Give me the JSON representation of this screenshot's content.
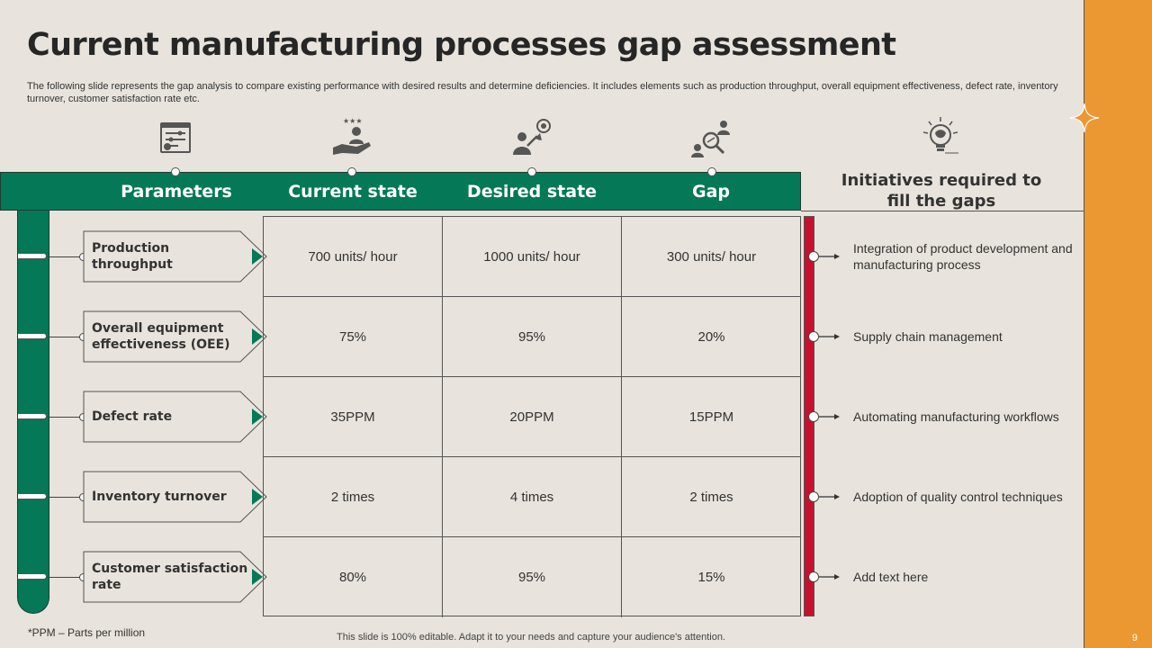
{
  "title": "Current manufacturing processes gap assessment",
  "subtitle": "The following slide represents the gap analysis to compare existing performance with desired results and determine deficiencies. It includes elements such as production throughput, overall equipment effectiveness, defect rate, inventory turnover, customer satisfaction rate etc.",
  "icons": [
    "dashboard-settings-icon",
    "rating-hand-icon",
    "growth-target-icon",
    "search-people-icon",
    "brain-bulb-icon"
  ],
  "headers": {
    "parameters": "Parameters",
    "current": "Current state",
    "desired": "Desired state",
    "gap": "Gap",
    "initiatives": "Initiatives required to fill the gaps"
  },
  "rows": [
    {
      "parameter": "Production throughput",
      "current": "700 units/ hour",
      "desired": "1000 units/ hour",
      "gap": "300 units/ hour",
      "initiative": "Integration of product development and manufacturing process"
    },
    {
      "parameter": "Overall equipment effectiveness (OEE)",
      "current": "75%",
      "desired": "95%",
      "gap": "20%",
      "initiative": "Supply chain management"
    },
    {
      "parameter": "Defect rate",
      "current": "35PPM",
      "desired": "20PPM",
      "gap": "15PPM",
      "initiative": "Automating manufacturing workflows"
    },
    {
      "parameter": "Inventory turnover",
      "current": "2 times",
      "desired": "4 times",
      "gap": "2 times",
      "initiative": "Adoption of quality control techniques"
    },
    {
      "parameter": "Customer satisfaction rate",
      "current": "80%",
      "desired": "95%",
      "gap": "15%",
      "initiative": "Add text here"
    }
  ],
  "footnote": "*PPM – Parts per million",
  "footer_note": "This slide is 100% editable. Adapt it to your needs and capture your audience's attention.",
  "page_number": "9",
  "colors": {
    "green": "#047857",
    "orange": "#EC9832",
    "red": "#C8102E",
    "background": "#E8E3DC"
  }
}
